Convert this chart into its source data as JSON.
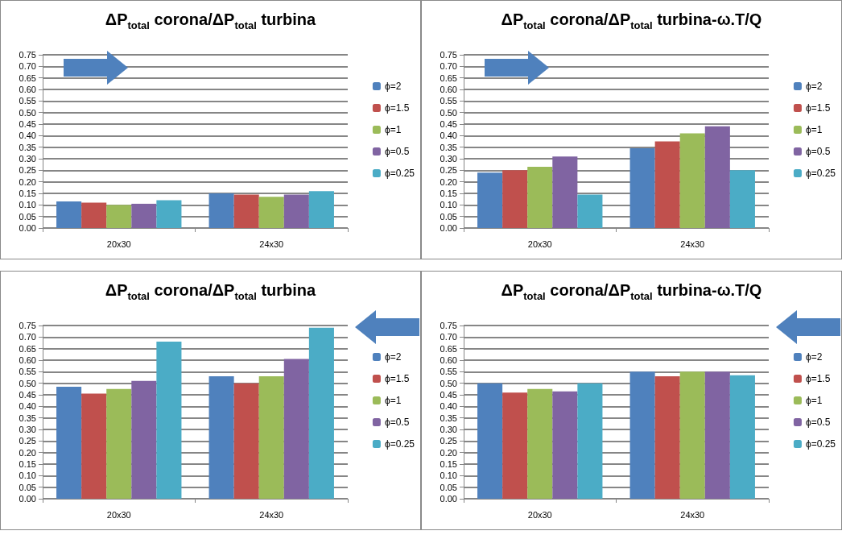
{
  "chart_data": [
    {
      "type": "bar",
      "title": "ΔP$_{total}$ corona/ΔP$_{total}$ turbina",
      "categories": [
        "20x30",
        "24x30"
      ],
      "series": [
        {
          "name": "ϕ=2",
          "color": "#4f81bd",
          "values": [
            0.115,
            0.15
          ]
        },
        {
          "name": "ϕ=1.5",
          "color": "#c0504d",
          "values": [
            0.11,
            0.145
          ]
        },
        {
          "name": "ϕ=1",
          "color": "#9bbb59",
          "values": [
            0.1,
            0.135
          ]
        },
        {
          "name": "ϕ=0.5",
          "color": "#8064a2",
          "values": [
            0.105,
            0.145
          ]
        },
        {
          "name": "ϕ=0.25",
          "color": "#4bacc6",
          "values": [
            0.12,
            0.16
          ]
        }
      ],
      "ylim": [
        0,
        0.75
      ],
      "yticks": [
        {
          "value": 0,
          "label": "0.00"
        },
        0.05,
        {
          "value": 0.1,
          "label": "0.10"
        },
        0.15,
        {
          "value": 0.2,
          "label": "0.20"
        },
        0.25,
        {
          "value": 0.3,
          "label": "0.30"
        },
        0.35,
        {
          "value": 0.4,
          "label": "0.40"
        },
        0.45,
        {
          "value": 0.5,
          "label": "0.50"
        },
        0.55,
        {
          "value": 0.6,
          "label": "0.60"
        },
        0.65,
        {
          "value": 0.7,
          "label": "0.70"
        },
        0.75
      ],
      "grid": "y",
      "legend": "right"
    },
    {
      "type": "bar",
      "title": "ΔP$_{total}$ corona/ΔP$_{total}$ turbina-ω.T/Q",
      "categories": [
        "20x30",
        "24x30"
      ],
      "series": [
        {
          "name": "ϕ=2",
          "color": "#4f81bd",
          "values": [
            0.24,
            0.345
          ]
        },
        {
          "name": "ϕ=1.5",
          "color": "#c0504d",
          "values": [
            0.25,
            0.375
          ]
        },
        {
          "name": "ϕ=1",
          "color": "#9bbb59",
          "values": [
            0.265,
            0.41
          ]
        },
        {
          "name": "ϕ=0.5",
          "color": "#8064a2",
          "values": [
            0.31,
            0.44
          ]
        },
        {
          "name": "ϕ=0.25",
          "color": "#4bacc6",
          "values": [
            0.145,
            0.25
          ]
        }
      ],
      "ylim": [
        0,
        0.75
      ],
      "yticks": [
        {
          "value": 0,
          "label": "0.00"
        },
        0.05,
        {
          "value": 0.1,
          "label": "0.10"
        },
        0.15,
        {
          "value": 0.2,
          "label": "0.20"
        },
        0.25,
        {
          "value": 0.3,
          "label": "0.30"
        },
        0.35,
        {
          "value": 0.4,
          "label": "0.40"
        },
        0.45,
        {
          "value": 0.5,
          "label": "0.50"
        },
        0.55,
        {
          "value": 0.6,
          "label": "0.60"
        },
        0.65,
        {
          "value": 0.7,
          "label": "0.70"
        },
        0.75
      ],
      "grid": "y",
      "legend": "right"
    },
    {
      "type": "bar",
      "title": "ΔP$_{total}$ corona/ΔP$_{total}$ turbina",
      "categories": [
        "20x30",
        "24x30"
      ],
      "series": [
        {
          "name": "ϕ=2",
          "color": "#4f81bd",
          "values": [
            0.485,
            0.53
          ]
        },
        {
          "name": "ϕ=1.5",
          "color": "#c0504d",
          "values": [
            0.455,
            0.5
          ]
        },
        {
          "name": "ϕ=1",
          "color": "#9bbb59",
          "values": [
            0.475,
            0.53
          ]
        },
        {
          "name": "ϕ=0.5",
          "color": "#8064a2",
          "values": [
            0.51,
            0.605
          ]
        },
        {
          "name": "ϕ=0.25",
          "color": "#4bacc6",
          "values": [
            0.68,
            0.74
          ]
        }
      ],
      "ylim": [
        0,
        0.75
      ],
      "yticks": [
        {
          "value": 0,
          "label": "0.00"
        },
        0.05,
        {
          "value": 0.1,
          "label": "0.10"
        },
        0.15,
        {
          "value": 0.2,
          "label": "0.20"
        },
        0.25,
        {
          "value": 0.3,
          "label": "0.30"
        },
        0.35,
        {
          "value": 0.4,
          "label": "0.40"
        },
        0.45,
        {
          "value": 0.5,
          "label": "0.50"
        },
        0.55,
        {
          "value": 0.6,
          "label": "0.60"
        },
        0.65,
        {
          "value": 0.7,
          "label": "0.70"
        },
        0.75
      ],
      "grid": "y",
      "legend": "right"
    },
    {
      "type": "bar",
      "title": "ΔP$_{total}$ corona/ΔP$_{total}$ turbina-ω.T/Q",
      "categories": [
        "20x30",
        "24x30"
      ],
      "series": [
        {
          "name": "ϕ=2",
          "color": "#4f81bd",
          "values": [
            0.5,
            0.55
          ]
        },
        {
          "name": "ϕ=1.5",
          "color": "#c0504d",
          "values": [
            0.46,
            0.53
          ]
        },
        {
          "name": "ϕ=1",
          "color": "#9bbb59",
          "values": [
            0.475,
            0.55
          ]
        },
        {
          "name": "ϕ=0.5",
          "color": "#8064a2",
          "values": [
            0.465,
            0.55
          ]
        },
        {
          "name": "ϕ=0.25",
          "color": "#4bacc6",
          "values": [
            0.5,
            0.535
          ]
        }
      ],
      "ylim": [
        0,
        0.75
      ],
      "yticks": [
        {
          "value": 0,
          "label": "0.00"
        },
        0.05,
        {
          "value": 0.1,
          "label": "0.10"
        },
        0.15,
        {
          "value": 0.2,
          "label": "0.20"
        },
        0.25,
        {
          "value": 0.3,
          "label": "0.30"
        },
        0.35,
        {
          "value": 0.4,
          "label": "0.40"
        },
        0.45,
        {
          "value": 0.5,
          "label": "0.50"
        },
        0.55,
        {
          "value": 0.6,
          "label": "0.60"
        },
        0.65,
        {
          "value": 0.7,
          "label": "0.70"
        },
        0.75
      ],
      "grid": "y",
      "legend": "right"
    }
  ]
}
